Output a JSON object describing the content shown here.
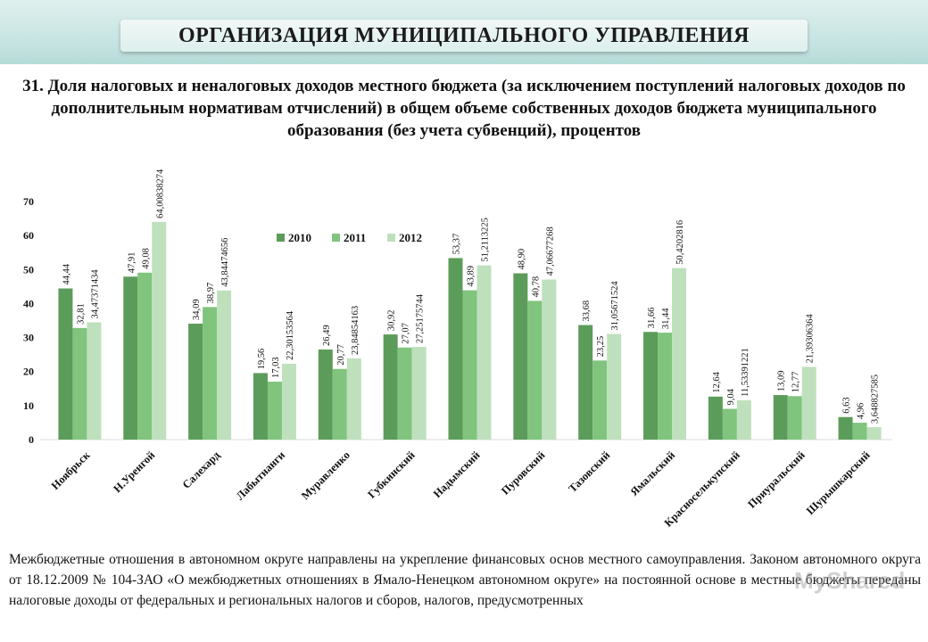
{
  "header": {
    "title": "ОРГАНИЗАЦИЯ МУНИЦИПАЛЬНОГО УПРАВЛЕНИЯ",
    "subtitle": "31. Доля налоговых и неналоговых доходов местного бюджета (за исключением поступлений налоговых доходов по дополнительным нормативам отчислений) в общем объеме собственных доходов бюджета муниципального образования (без учета субвенций), процентов"
  },
  "chart_data": {
    "type": "bar",
    "categories": [
      "Ноябрьск",
      "Н.Уренгой",
      "Салехард",
      "Лабытнанги",
      "Муравленко",
      "Губкинский",
      "Надымский",
      "Пуровский",
      "Тазовский",
      "Ямальский",
      "Красноселькупский",
      "Приуральский",
      "Шурышкарский"
    ],
    "series": [
      {
        "name": "2010",
        "color": "#5c9c5a",
        "values": [
          44.44,
          47.91,
          34.09,
          19.56,
          26.49,
          30.92,
          53.37,
          48.9,
          33.68,
          31.66,
          12.64,
          13.09,
          6.63
        ],
        "labels": [
          "44,44",
          "47,91",
          "34,09",
          "19,56",
          "26,49",
          "30,92",
          "53,37",
          "48,90",
          "33,68",
          "31,66",
          "12,64",
          "13,09",
          "6,63"
        ]
      },
      {
        "name": "2011",
        "color": "#80c47e",
        "values": [
          32.81,
          49.08,
          38.97,
          17.03,
          20.77,
          27.07,
          43.89,
          40.78,
          23.25,
          31.44,
          9.04,
          12.77,
          4.96
        ],
        "labels": [
          "32,81",
          "49,08",
          "38,97",
          "17,03",
          "20,77",
          "27,07",
          "43,89",
          "40,78",
          "23,25",
          "31,44",
          "9,04",
          "12,77",
          "4,96"
        ]
      },
      {
        "name": "2012",
        "color": "#bfe0bc",
        "values": [
          34.47371434,
          64.00838274,
          43.84474656,
          22.30153564,
          23.84854163,
          27.25175744,
          51.2113225,
          47.06677268,
          31.05671524,
          50.4202816,
          11.53391221,
          21.39306364,
          3.648827585
        ],
        "labels": [
          "34,47371434",
          "64,00838274",
          "43,84474656",
          "22,30153564",
          "23,84854163",
          "27,25175744",
          "51,2113225",
          "47,06677268",
          "31,05671524",
          "50,4202816",
          "11,53391221",
          "21,39306364",
          "3,648827585"
        ]
      }
    ],
    "ylim": [
      0,
      70
    ],
    "yticks": [
      "0",
      "10",
      "20",
      "30",
      "40",
      "50",
      "60",
      "70"
    ],
    "legend_position": "top-center",
    "grid": false
  },
  "footer": {
    "text": "Межбюджетные отношения в автономном округе направлены на укрепление финансовых основ местного самоуправления. Законом автономного округа от 18.12.2009 № 104-ЗАО «О межбюджетных отношениях в Ямало-Ненецком автономном округе» на постоянной основе в местные бюджеты переданы налоговые доходы от федеральных и региональных налогов и сборов, налогов, предусмотренных",
    "watermark": "MyShared"
  }
}
